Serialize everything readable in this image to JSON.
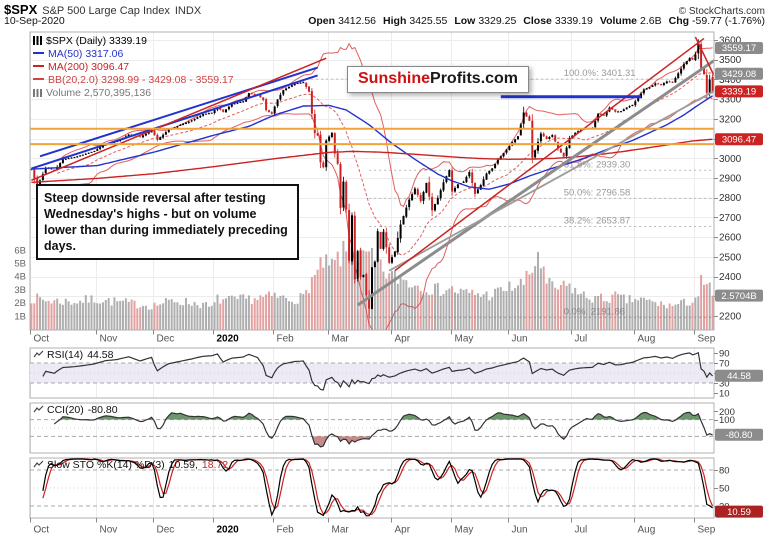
{
  "header": {
    "symbol": "$SPX",
    "title": "S&P 500 Large Cap Index",
    "exchange": "INDX",
    "copyright": "© StockCharts.com",
    "date": "10-Sep-2020",
    "ohlc_pairs": [
      {
        "label": "Open",
        "value": "3412.56"
      },
      {
        "label": "High",
        "value": "3425.55"
      },
      {
        "label": "Low",
        "value": "3329.25"
      },
      {
        "label": "Close",
        "value": "3339.19"
      },
      {
        "label": "Volume",
        "value": "2.6B"
      },
      {
        "label": "Chg",
        "value": "-59.77 (-1.76%)"
      }
    ]
  },
  "legend": {
    "rows": [
      {
        "marker": "candlesticks-icon",
        "text": "$SPX (Daily) 3339.19",
        "color": "#000000"
      },
      {
        "marker": "line-icon",
        "text": "MA(50) 3317.06",
        "color": "#2233cc"
      },
      {
        "marker": "line-icon",
        "text": "MA(200) 3096.47",
        "color": "#cc2222"
      },
      {
        "marker": "line-icon",
        "text": "BB(20,2.0) 3298.99 - 3429.08 - 3559.17",
        "color": "#cc4444"
      },
      {
        "marker": "bars-icon",
        "text": "Volume 2,570,395,136",
        "color": "#777777"
      }
    ]
  },
  "annotation": {
    "text": "Steep downside reversal after testing Wednesday's highs - but on volume lower than during immediately preceding days."
  },
  "watermark": {
    "part1": "Sunshine",
    "part2": "Profits.com"
  },
  "chart_data": {
    "type": "candlestick",
    "x_axis": {
      "total_days": 239,
      "months": [
        {
          "label": "Oct",
          "day": 0
        },
        {
          "label": "Nov",
          "day": 23
        },
        {
          "label": "Dec",
          "day": 43
        },
        {
          "label": "2020",
          "day": 64,
          "bold": true
        },
        {
          "label": "Feb",
          "day": 85
        },
        {
          "label": "Mar",
          "day": 104
        },
        {
          "label": "Apr",
          "day": 126
        },
        {
          "label": "May",
          "day": 147
        },
        {
          "label": "Jun",
          "day": 167
        },
        {
          "label": "Jul",
          "day": 189
        },
        {
          "label": "Aug",
          "day": 211
        },
        {
          "label": "Sep",
          "day": 232
        }
      ]
    },
    "price_axis": {
      "min": 2140,
      "max": 3640,
      "ticks": [
        3600,
        3500,
        3400,
        3300,
        3200,
        3100,
        3000,
        2900,
        2800,
        2700,
        2600,
        2500,
        2400,
        2300,
        2200
      ]
    },
    "volume_axis": {
      "ticks": [
        {
          "text": "6B",
          "v": 6
        },
        {
          "text": "5B",
          "v": 5
        },
        {
          "text": "4B",
          "v": 4
        },
        {
          "text": "3B",
          "v": 3
        },
        {
          "text": "2B",
          "v": 2
        },
        {
          "text": "1B",
          "v": 1
        }
      ]
    },
    "close_anchors": [
      [
        0,
        2940
      ],
      [
        2,
        2856
      ],
      [
        5,
        2952
      ],
      [
        8,
        2938
      ],
      [
        11,
        2995
      ],
      [
        15,
        3006
      ],
      [
        19,
        3023
      ],
      [
        22,
        3037
      ],
      [
        26,
        3074
      ],
      [
        30,
        3087
      ],
      [
        34,
        3120
      ],
      [
        38,
        3108
      ],
      [
        42,
        3141
      ],
      [
        44,
        3093
      ],
      [
        48,
        3146
      ],
      [
        52,
        3169
      ],
      [
        56,
        3192
      ],
      [
        60,
        3224
      ],
      [
        63,
        3231
      ],
      [
        65,
        3258
      ],
      [
        67,
        3235
      ],
      [
        70,
        3275
      ],
      [
        74,
        3289
      ],
      [
        76,
        3330
      ],
      [
        79,
        3321
      ],
      [
        81,
        3295
      ],
      [
        82,
        3244
      ],
      [
        84,
        3226
      ],
      [
        86,
        3298
      ],
      [
        88,
        3346
      ],
      [
        92,
        3379
      ],
      [
        95,
        3386
      ],
      [
        97,
        3338
      ],
      [
        98,
        3226
      ],
      [
        99,
        3128
      ],
      [
        100,
        3116
      ],
      [
        101,
        2979
      ],
      [
        102,
        2954
      ],
      [
        103,
        3090
      ],
      [
        105,
        3130
      ],
      [
        106,
        3024
      ],
      [
        107,
        2972
      ],
      [
        108,
        2747
      ],
      [
        109,
        2882
      ],
      [
        110,
        2741
      ],
      [
        111,
        2481
      ],
      [
        112,
        2711
      ],
      [
        113,
        2386
      ],
      [
        114,
        2529
      ],
      [
        115,
        2398
      ],
      [
        116,
        2409
      ],
      [
        117,
        2305
      ],
      [
        118,
        2237
      ],
      [
        119,
        2447
      ],
      [
        120,
        2476
      ],
      [
        121,
        2630
      ],
      [
        122,
        2541
      ],
      [
        123,
        2627
      ],
      [
        125,
        2470
      ],
      [
        127,
        2527
      ],
      [
        129,
        2664
      ],
      [
        131,
        2750
      ],
      [
        132,
        2790
      ],
      [
        134,
        2846
      ],
      [
        136,
        2783
      ],
      [
        138,
        2875
      ],
      [
        140,
        2736
      ],
      [
        142,
        2799
      ],
      [
        144,
        2878
      ],
      [
        146,
        2940
      ],
      [
        147,
        2831
      ],
      [
        149,
        2868
      ],
      [
        151,
        2881
      ],
      [
        153,
        2930
      ],
      [
        155,
        2820
      ],
      [
        157,
        2864
      ],
      [
        159,
        2923
      ],
      [
        161,
        2949
      ],
      [
        163,
        2992
      ],
      [
        166,
        3044
      ],
      [
        168,
        3081
      ],
      [
        170,
        3112
      ],
      [
        172,
        3232
      ],
      [
        174,
        3190
      ],
      [
        175,
        3002
      ],
      [
        176,
        3041
      ],
      [
        178,
        3125
      ],
      [
        180,
        3098
      ],
      [
        182,
        3118
      ],
      [
        184,
        3050
      ],
      [
        186,
        3009
      ],
      [
        188,
        3100
      ],
      [
        190,
        3130
      ],
      [
        192,
        3145
      ],
      [
        194,
        3152
      ],
      [
        196,
        3155
      ],
      [
        198,
        3226
      ],
      [
        200,
        3216
      ],
      [
        202,
        3257
      ],
      [
        204,
        3236
      ],
      [
        206,
        3239
      ],
      [
        208,
        3258
      ],
      [
        210,
        3271
      ],
      [
        212,
        3307
      ],
      [
        214,
        3349
      ],
      [
        216,
        3360
      ],
      [
        218,
        3380
      ],
      [
        220,
        3373
      ],
      [
        222,
        3390
      ],
      [
        224,
        3385
      ],
      [
        226,
        3431
      ],
      [
        228,
        3478
      ],
      [
        230,
        3508
      ],
      [
        231,
        3500
      ],
      [
        232,
        3527
      ],
      [
        233,
        3581
      ],
      [
        234,
        3455
      ],
      [
        235,
        3427
      ],
      [
        236,
        3332
      ],
      [
        237,
        3399
      ],
      [
        238,
        3339.19
      ]
    ],
    "volume_anchors": [
      [
        0,
        2.4
      ],
      [
        5,
        2.2
      ],
      [
        15,
        2.1
      ],
      [
        22,
        2.3
      ],
      [
        30,
        2.1
      ],
      [
        42,
        1.8
      ],
      [
        50,
        2.2
      ],
      [
        60,
        1.9
      ],
      [
        63,
        1.6
      ],
      [
        65,
        2.3
      ],
      [
        70,
        2.2
      ],
      [
        80,
        2.4
      ],
      [
        85,
        2.5
      ],
      [
        90,
        2.3
      ],
      [
        95,
        2.4
      ],
      [
        98,
        3.8
      ],
      [
        100,
        4.2
      ],
      [
        102,
        5.1
      ],
      [
        104,
        4.6
      ],
      [
        108,
        5.5
      ],
      [
        111,
        6.1
      ],
      [
        113,
        5.9
      ],
      [
        116,
        5.3
      ],
      [
        118,
        5.6
      ],
      [
        120,
        4.9
      ],
      [
        123,
        4.4
      ],
      [
        126,
        4.0
      ],
      [
        130,
        3.8
      ],
      [
        134,
        3.4
      ],
      [
        138,
        3.2
      ],
      [
        142,
        3.0
      ],
      [
        146,
        3.1
      ],
      [
        150,
        2.8
      ],
      [
        155,
        2.7
      ],
      [
        160,
        2.6
      ],
      [
        165,
        3.0
      ],
      [
        169,
        3.3
      ],
      [
        172,
        3.5
      ],
      [
        175,
        4.4
      ],
      [
        177,
        5.8
      ],
      [
        180,
        3.4
      ],
      [
        184,
        3.1
      ],
      [
        188,
        3.3
      ],
      [
        192,
        2.6
      ],
      [
        196,
        2.4
      ],
      [
        200,
        2.3
      ],
      [
        204,
        2.5
      ],
      [
        208,
        2.2
      ],
      [
        212,
        2.3
      ],
      [
        216,
        2.1
      ],
      [
        220,
        1.9
      ],
      [
        224,
        1.8
      ],
      [
        228,
        2.0
      ],
      [
        231,
        2.2
      ],
      [
        232,
        2.4
      ],
      [
        233,
        2.6
      ],
      [
        234,
        3.6
      ],
      [
        235,
        3.0
      ],
      [
        236,
        3.4
      ],
      [
        237,
        3.1
      ],
      [
        238,
        2.57
      ]
    ],
    "ma50_anchors": [
      [
        0,
        2945
      ],
      [
        23,
        2963
      ],
      [
        43,
        3032
      ],
      [
        64,
        3118
      ],
      [
        76,
        3162
      ],
      [
        85,
        3220
      ],
      [
        95,
        3265
      ],
      [
        104,
        3268
      ],
      [
        110,
        3245
      ],
      [
        118,
        3170
      ],
      [
        126,
        3075
      ],
      [
        135,
        2985
      ],
      [
        142,
        2920
      ],
      [
        147,
        2885
      ],
      [
        153,
        2855
      ],
      [
        160,
        2843
      ],
      [
        167,
        2870
      ],
      [
        174,
        2910
      ],
      [
        181,
        2945
      ],
      [
        188,
        2975
      ],
      [
        195,
        3010
      ],
      [
        202,
        3050
      ],
      [
        210,
        3090
      ],
      [
        216,
        3130
      ],
      [
        222,
        3170
      ],
      [
        228,
        3220
      ],
      [
        233,
        3270
      ],
      [
        238,
        3317.06
      ]
    ],
    "ma200_anchors": [
      [
        0,
        2878
      ],
      [
        23,
        2898
      ],
      [
        43,
        2922
      ],
      [
        64,
        2958
      ],
      [
        85,
        2998
      ],
      [
        104,
        3030
      ],
      [
        112,
        3035
      ],
      [
        120,
        3032
      ],
      [
        126,
        3028
      ],
      [
        134,
        3020
      ],
      [
        142,
        3012
      ],
      [
        150,
        3004
      ],
      [
        158,
        2998
      ],
      [
        167,
        2995
      ],
      [
        175,
        2996
      ],
      [
        183,
        3000
      ],
      [
        191,
        3008
      ],
      [
        199,
        3020
      ],
      [
        207,
        3035
      ],
      [
        215,
        3052
      ],
      [
        223,
        3070
      ],
      [
        231,
        3088
      ],
      [
        238,
        3096.47
      ]
    ],
    "bollinger": {
      "period": 20,
      "stdev": 2,
      "last_lower": 3298.99,
      "last_mid": 3429.08,
      "last_upper": 3559.17
    },
    "key_candles": {
      "last": {
        "open": 3412.56,
        "high": 3425.55,
        "low": 3329.25,
        "close": 3339.19
      },
      "march_low": {
        "day": 118,
        "low": 2191.86
      },
      "sept_high": {
        "day": 233,
        "high": 3588.11
      }
    },
    "fib_label_day": 186,
    "fib_levels": [
      {
        "label": "100.0%: 3401.31",
        "price": 3401.31,
        "from_day": 96
      },
      {
        "label": "61.8%: 2939.30",
        "price": 2939.3,
        "from_day": 118
      },
      {
        "label": "50.0%: 2796.58",
        "price": 2796.58,
        "from_day": 118
      },
      {
        "label": "38.2%: 2653.87",
        "price": 2653.87,
        "from_day": 118
      },
      {
        "label": "0.0%: 2191.86",
        "price": 2191.86,
        "from_day": 118
      }
    ],
    "overlay_lines": [
      {
        "name": "blue-channel-lower",
        "d1": 0,
        "p1": 2948,
        "d2": 100,
        "p2": 3420,
        "color": "#2233cc",
        "w": 2
      },
      {
        "name": "blue-channel-upper",
        "d1": 3,
        "p1": 3010,
        "d2": 100,
        "p2": 3460,
        "color": "#2233cc",
        "w": 2
      },
      {
        "name": "red-trendline-early",
        "d1": 0,
        "p1": 2888,
        "d2": 103,
        "p2": 3508,
        "color": "#cc2222",
        "w": 1.5
      },
      {
        "name": "gray-major-uptrend",
        "d1": 114,
        "p1": 2255,
        "d2": 239,
        "p2": 3500,
        "color": "#8c8c8c",
        "w": 3
      },
      {
        "name": "gray-secondary-uptrend",
        "d1": 125,
        "p1": 2430,
        "d2": 239,
        "p2": 3345,
        "color": "#9c9c9c",
        "w": 1.8
      },
      {
        "name": "red-wedge-upper",
        "d1": 127,
        "p1": 2430,
        "d2": 235,
        "p2": 3608,
        "color": "#cc2222",
        "w": 1.5
      },
      {
        "name": "blue-resistance",
        "d1": 164,
        "p1": 3312,
        "d2": 213,
        "p2": 3312,
        "color": "#2233cc",
        "w": 3
      },
      {
        "name": "orange-support-upper",
        "d1": -1,
        "p1": 3150,
        "d2": 240,
        "p2": 3150,
        "color": "#efa33a",
        "w": 2
      },
      {
        "name": "orange-support-lower",
        "d1": -1,
        "p1": 3072,
        "d2": 240,
        "p2": 3072,
        "color": "#efa33a",
        "w": 2
      },
      {
        "name": "red-short-decline",
        "d1": 232,
        "p1": 3615,
        "d2": 239,
        "p2": 3405,
        "color": "#cc2222",
        "w": 1.5
      }
    ],
    "axis_boxes": [
      {
        "text": "3559.17",
        "price": 3559.17,
        "bg": "#8c8c8c"
      },
      {
        "text": "3429.08",
        "price": 3429.08,
        "bg": "#8c8c8c"
      },
      {
        "text": "3339.19",
        "price": 3339.19,
        "bg": "#cc2222"
      },
      {
        "text": "3096.47",
        "price": 3096.47,
        "bg": "#cc2222"
      },
      {
        "text": "2.5704B",
        "volume": 2.5704,
        "bg": "#8c8c8c"
      }
    ],
    "indicators": {
      "rsi": {
        "label": "RSI(14)",
        "value": "44.58",
        "period": 14,
        "ticks": [
          90,
          70,
          50,
          30,
          10
        ],
        "band": [
          30,
          70
        ],
        "guides": [
          70,
          50,
          30
        ],
        "box": {
          "text": "44.58",
          "v": 44.58,
          "bg": "#8c8c8c"
        }
      },
      "cci": {
        "label": "CCI(20)",
        "value": "-80.80",
        "period": 20,
        "ticks": [
          200,
          100
        ],
        "range": [
          -300,
          300
        ],
        "guides": [
          100,
          0,
          -100
        ],
        "box": {
          "text": "-80.80",
          "v": -80.8,
          "bg": "#8c8c8c"
        }
      },
      "sto": {
        "label": "Slow STO %K(14) %D(3)",
        "k_value": "10.59,",
        "d_value": "18.72",
        "period": 14,
        "smooth": 3,
        "ticks": [
          80,
          50,
          20
        ],
        "guides": [
          80,
          50,
          20
        ],
        "box": {
          "text": "10.59",
          "v": 10.59,
          "bg": "#aa2222"
        }
      }
    }
  }
}
